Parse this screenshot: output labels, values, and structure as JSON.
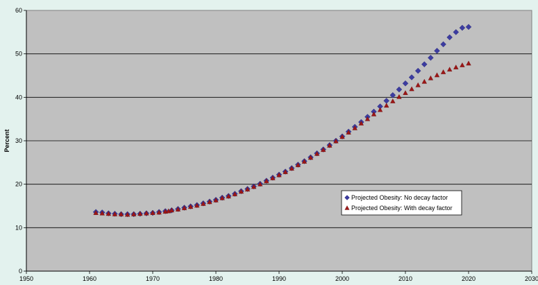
{
  "chart_data": {
    "type": "scatter",
    "title": "",
    "xlabel": "",
    "ylabel": "Percent",
    "xlim": [
      1950,
      2030
    ],
    "ylim": [
      0,
      60
    ],
    "xticks": [
      1950,
      1960,
      1970,
      1980,
      1990,
      2000,
      2010,
      2020,
      2030
    ],
    "yticks": [
      0,
      10,
      20,
      30,
      40,
      50,
      60
    ],
    "grid": "horizontal",
    "plot_background": "#c0c0c0",
    "legend_position": "right",
    "series": [
      {
        "name": "Projected Obesity: No decay factor",
        "marker": "diamond",
        "color": "#3c3ca0",
        "x": [
          1961,
          1962,
          1963,
          1964,
          1965,
          1966,
          1967,
          1968,
          1969,
          1970,
          1971,
          1972,
          1973,
          1974,
          1975,
          1976,
          1977,
          1978,
          1979,
          1980,
          1981,
          1982,
          1983,
          1984,
          1985,
          1986,
          1987,
          1988,
          1989,
          1990,
          1991,
          1992,
          1993,
          1994,
          1995,
          1996,
          1997,
          1998,
          1999,
          2000,
          2001,
          2002,
          2003,
          2004,
          2005,
          2006,
          2007,
          2008,
          2009,
          2010,
          2011,
          2012,
          2013,
          2014,
          2015,
          2016,
          2017,
          2018,
          2019,
          2020
        ],
        "y": [
          13.6,
          13.5,
          13.3,
          13.2,
          13.1,
          13.1,
          13.1,
          13.2,
          13.3,
          13.4,
          13.6,
          13.8,
          14.0,
          14.3,
          14.6,
          14.9,
          15.2,
          15.6,
          16.0,
          16.4,
          16.9,
          17.3,
          17.8,
          18.4,
          18.9,
          19.5,
          20.1,
          20.8,
          21.5,
          22.2,
          22.9,
          23.7,
          24.5,
          25.3,
          26.2,
          27.1,
          28.0,
          29.0,
          30.0,
          31.0,
          32.1,
          33.2,
          34.3,
          35.5,
          36.7,
          37.9,
          39.2,
          40.5,
          41.8,
          43.2,
          44.6,
          46.1,
          47.6,
          49.1,
          50.7,
          52.2,
          53.8,
          55.0,
          56.0,
          56.2
        ]
      },
      {
        "name": "Projected Obesity: With decay factor",
        "marker": "triangle",
        "color": "#9c1616",
        "x": [
          1961,
          1962,
          1963,
          1964,
          1965,
          1966,
          1967,
          1968,
          1969,
          1970,
          1971,
          1972,
          1972.5,
          1973,
          1974,
          1975,
          1976,
          1977,
          1978,
          1979,
          1980,
          1981,
          1982,
          1983,
          1984,
          1985,
          1986,
          1987,
          1988,
          1989,
          1990,
          1991,
          1992,
          1993,
          1994,
          1995,
          1996,
          1997,
          1998,
          1999,
          2000,
          2001,
          2002,
          2003,
          2004,
          2005,
          2006,
          2007,
          2008,
          2009,
          2010,
          2011,
          2012,
          2013,
          2014,
          2015,
          2016,
          2017,
          2018,
          2019,
          2020
        ],
        "y": [
          13.4,
          13.3,
          13.2,
          13.1,
          13.1,
          13.0,
          13.1,
          13.2,
          13.3,
          13.4,
          13.5,
          13.7,
          13.8,
          14.0,
          14.2,
          14.5,
          14.8,
          15.1,
          15.5,
          15.9,
          16.3,
          16.8,
          17.2,
          17.7,
          18.3,
          18.8,
          19.4,
          20.0,
          20.7,
          21.4,
          22.1,
          22.8,
          23.6,
          24.4,
          25.2,
          26.1,
          27.0,
          27.9,
          28.9,
          29.9,
          30.9,
          31.9,
          32.9,
          34.0,
          35.0,
          36.1,
          37.1,
          38.1,
          39.1,
          40.1,
          41.0,
          41.9,
          42.8,
          43.6,
          44.4,
          45.1,
          45.8,
          46.4,
          46.9,
          47.4,
          47.8
        ]
      }
    ]
  }
}
